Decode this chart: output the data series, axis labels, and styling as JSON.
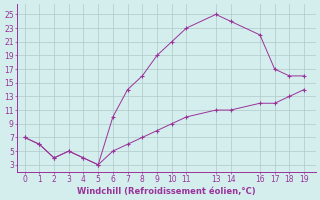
{
  "xlabel": "Windchill (Refroidissement éolien,°C)",
  "line1_x": [
    0,
    1,
    2,
    3,
    4,
    5,
    6,
    7,
    8,
    9,
    10,
    11,
    13,
    14,
    16,
    17,
    18,
    19
  ],
  "line1_y": [
    7,
    6,
    4,
    5,
    4,
    3,
    10,
    14,
    16,
    19,
    21,
    23,
    25,
    24,
    22,
    17,
    16,
    16
  ],
  "line2_x": [
    0,
    1,
    2,
    3,
    4,
    5,
    6,
    7,
    8,
    9,
    10,
    11,
    13,
    14,
    16,
    17,
    18,
    19
  ],
  "line2_y": [
    7,
    6,
    4,
    5,
    4,
    3,
    5,
    6,
    7,
    8,
    9,
    10,
    11,
    11,
    12,
    12,
    13,
    14
  ],
  "line_color": "#993399",
  "bg_color": "#d4eeee",
  "grid_color": "#b0c8c8",
  "xlim": [
    -0.5,
    19.8
  ],
  "ylim": [
    2,
    26.5
  ],
  "xticks": [
    0,
    1,
    2,
    3,
    4,
    5,
    6,
    7,
    8,
    9,
    10,
    11,
    13,
    14,
    16,
    17,
    18,
    19
  ],
  "yticks": [
    3,
    5,
    7,
    9,
    11,
    13,
    15,
    17,
    19,
    21,
    23,
    25
  ],
  "tick_fontsize": 5.5,
  "xlabel_fontsize": 6,
  "marker": "+"
}
